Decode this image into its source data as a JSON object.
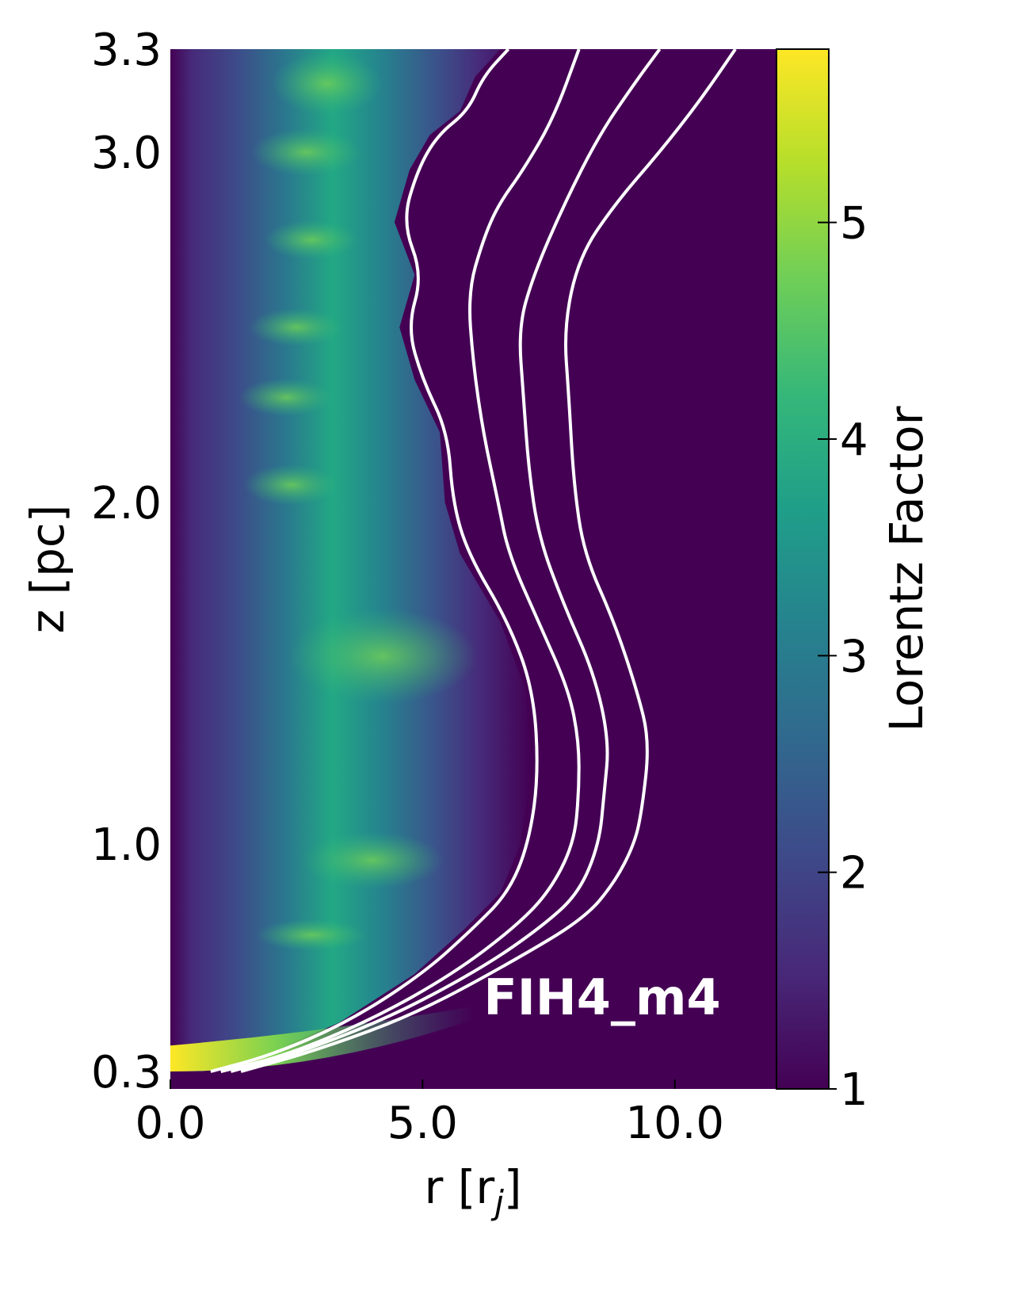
{
  "chart_data": {
    "type": "heatmap",
    "title": "",
    "annotation": "FIH4_m4",
    "xlabel": "r [r_j]",
    "xlabel_main": "r [r",
    "xlabel_sub": "j",
    "xlabel_close": "]",
    "ylabel": "z [pc]",
    "xlim": [
      0.0,
      12.0
    ],
    "ylim": [
      0.3,
      3.3
    ],
    "x_ticks": [
      0.0,
      5.0,
      10.0
    ],
    "x_tick_labels": [
      "0.0",
      "5.0",
      "10.0"
    ],
    "y_ticks": [
      0.3,
      1.0,
      2.0,
      3.0,
      3.3
    ],
    "y_tick_labels": [
      "0.3",
      "1.0",
      "2.0",
      "3.0",
      "3.3"
    ],
    "colorbar": {
      "label": "Lorentz Factor",
      "range": [
        1,
        5.8
      ],
      "ticks": [
        1,
        2,
        3,
        4,
        5
      ],
      "tick_labels": [
        "1",
        "2",
        "3",
        "4",
        "5"
      ],
      "colormap": "viridis",
      "colors": [
        "#440154",
        "#482878",
        "#3e4989",
        "#31688e",
        "#26828e",
        "#1f9e89",
        "#35b779",
        "#6ece58",
        "#b5de2b",
        "#fde725"
      ]
    },
    "contour_color": "#ffffff",
    "contours": [
      {
        "points": [
          [
            0.8,
            0.3
          ],
          [
            2.0,
            0.35
          ],
          [
            3.5,
            0.45
          ],
          [
            5.0,
            0.6
          ],
          [
            6.0,
            0.74
          ],
          [
            6.7,
            0.85
          ],
          [
            7.1,
            1.0
          ],
          [
            7.3,
            1.2
          ],
          [
            7.2,
            1.45
          ],
          [
            6.7,
            1.65
          ],
          [
            5.9,
            1.85
          ],
          [
            5.6,
            2.0
          ],
          [
            5.5,
            2.2
          ],
          [
            5.0,
            2.35
          ],
          [
            4.7,
            2.5
          ],
          [
            5.0,
            2.65
          ],
          [
            4.6,
            2.8
          ],
          [
            4.9,
            2.95
          ],
          [
            5.3,
            3.05
          ],
          [
            5.9,
            3.12
          ],
          [
            6.2,
            3.22
          ],
          [
            6.7,
            3.3
          ]
        ]
      },
      {
        "points": [
          [
            1.0,
            0.3
          ],
          [
            2.3,
            0.35
          ],
          [
            4.0,
            0.46
          ],
          [
            5.6,
            0.6
          ],
          [
            6.8,
            0.74
          ],
          [
            7.5,
            0.85
          ],
          [
            8.0,
            1.0
          ],
          [
            8.1,
            1.15
          ],
          [
            8.1,
            1.3
          ],
          [
            7.9,
            1.45
          ],
          [
            7.3,
            1.65
          ],
          [
            6.7,
            1.85
          ],
          [
            6.5,
            2.0
          ],
          [
            6.2,
            2.2
          ],
          [
            6.0,
            2.4
          ],
          [
            5.9,
            2.6
          ],
          [
            6.2,
            2.75
          ],
          [
            6.5,
            2.85
          ],
          [
            7.0,
            2.95
          ],
          [
            7.6,
            3.1
          ],
          [
            8.1,
            3.3
          ]
        ]
      },
      {
        "points": [
          [
            1.2,
            0.3
          ],
          [
            2.6,
            0.36
          ],
          [
            4.4,
            0.47
          ],
          [
            6.2,
            0.62
          ],
          [
            7.4,
            0.75
          ],
          [
            8.1,
            0.85
          ],
          [
            8.5,
            1.0
          ],
          [
            8.6,
            1.15
          ],
          [
            8.7,
            1.3
          ],
          [
            8.4,
            1.5
          ],
          [
            7.8,
            1.7
          ],
          [
            7.3,
            1.9
          ],
          [
            7.1,
            2.1
          ],
          [
            7.0,
            2.3
          ],
          [
            6.9,
            2.5
          ],
          [
            7.2,
            2.65
          ],
          [
            7.8,
            2.85
          ],
          [
            8.5,
            3.05
          ],
          [
            9.2,
            3.2
          ],
          [
            9.7,
            3.3
          ]
        ]
      },
      {
        "points": [
          [
            1.4,
            0.3
          ],
          [
            3.0,
            0.37
          ],
          [
            4.9,
            0.48
          ],
          [
            6.8,
            0.64
          ],
          [
            8.2,
            0.77
          ],
          [
            8.8,
            0.88
          ],
          [
            9.2,
            1.0
          ],
          [
            9.35,
            1.1
          ],
          [
            9.5,
            1.3
          ],
          [
            9.25,
            1.45
          ],
          [
            8.8,
            1.65
          ],
          [
            8.2,
            1.85
          ],
          [
            8.0,
            2.05
          ],
          [
            7.9,
            2.3
          ],
          [
            7.8,
            2.5
          ],
          [
            8.1,
            2.7
          ],
          [
            8.8,
            2.85
          ],
          [
            9.7,
            3.0
          ],
          [
            10.5,
            3.15
          ],
          [
            11.2,
            3.3
          ]
        ]
      }
    ]
  }
}
